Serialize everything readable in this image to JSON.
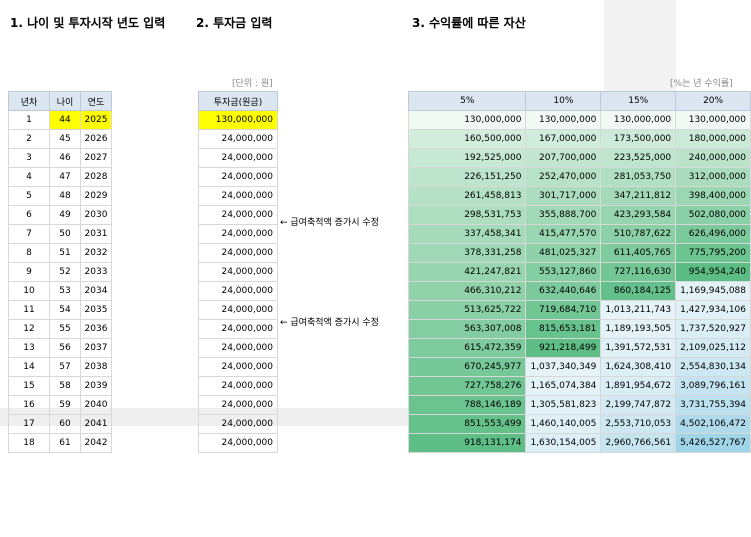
{
  "titles": {
    "age": "1. 나이 및 투자시작 년도 입력",
    "amount": "2. 투자금 입력",
    "returns": "3. 수익률에 따른 자산"
  },
  "units": {
    "amount": "[단위 : 원]",
    "returns": "[%는 년 수익률]"
  },
  "age_table": {
    "headers": [
      "년차",
      "나이",
      "연도"
    ],
    "rows": [
      [
        "1",
        "44",
        "2025"
      ],
      [
        "2",
        "45",
        "2026"
      ],
      [
        "3",
        "46",
        "2027"
      ],
      [
        "4",
        "47",
        "2028"
      ],
      [
        "5",
        "48",
        "2029"
      ],
      [
        "6",
        "49",
        "2030"
      ],
      [
        "7",
        "50",
        "2031"
      ],
      [
        "8",
        "51",
        "2032"
      ],
      [
        "9",
        "52",
        "2033"
      ],
      [
        "10",
        "53",
        "2034"
      ],
      [
        "11",
        "54",
        "2035"
      ],
      [
        "12",
        "55",
        "2036"
      ],
      [
        "13",
        "56",
        "2037"
      ],
      [
        "14",
        "57",
        "2038"
      ],
      [
        "15",
        "58",
        "2039"
      ],
      [
        "16",
        "59",
        "2040"
      ],
      [
        "17",
        "60",
        "2041"
      ],
      [
        "18",
        "61",
        "2042"
      ]
    ]
  },
  "amount_table": {
    "header": "투자금(원금)",
    "rows": [
      "130,000,000",
      "24,000,000",
      "24,000,000",
      "24,000,000",
      "24,000,000",
      "24,000,000",
      "24,000,000",
      "24,000,000",
      "24,000,000",
      "24,000,000",
      "24,000,000",
      "24,000,000",
      "24,000,000",
      "24,000,000",
      "24,000,000",
      "24,000,000",
      "24,000,000",
      "24,000,000"
    ]
  },
  "notes": [
    {
      "row": 6,
      "text": "← 급여축적액 증가시 수정"
    },
    {
      "row": 11,
      "text": "← 급여축적액 증가시 수정"
    }
  ],
  "returns_table": {
    "headers": [
      "5%",
      "10%",
      "15%",
      "20%"
    ],
    "rows": [
      [
        "130,000,000",
        "130,000,000",
        "130,000,000",
        "130,000,000"
      ],
      [
        "160,500,000",
        "167,000,000",
        "173,500,000",
        "180,000,000"
      ],
      [
        "192,525,000",
        "207,700,000",
        "223,525,000",
        "240,000,000"
      ],
      [
        "226,151,250",
        "252,470,000",
        "281,053,750",
        "312,000,000"
      ],
      [
        "261,458,813",
        "301,717,000",
        "347,211,812",
        "398,400,000"
      ],
      [
        "298,531,753",
        "355,888,700",
        "423,293,584",
        "502,080,000"
      ],
      [
        "337,458,341",
        "415,477,570",
        "510,787,622",
        "626,496,000"
      ],
      [
        "378,331,258",
        "481,025,327",
        "611,405,765",
        "775,795,200"
      ],
      [
        "421,247,821",
        "553,127,860",
        "727,116,630",
        "954,954,240"
      ],
      [
        "466,310,212",
        "632,440,646",
        "860,184,125",
        "1,169,945,088"
      ],
      [
        "513,625,722",
        "719,684,710",
        "1,013,211,743",
        "1,427,934,106"
      ],
      [
        "563,307,008",
        "815,653,181",
        "1,189,193,505",
        "1,737,520,927"
      ],
      [
        "615,472,359",
        "921,218,499",
        "1,391,572,531",
        "2,109,025,112"
      ],
      [
        "670,245,977",
        "1,037,340,349",
        "1,624,308,410",
        "2,554,830,134"
      ],
      [
        "727,758,276",
        "1,165,074,384",
        "1,891,954,672",
        "3,089,796,161"
      ],
      [
        "788,146,189",
        "1,305,581,823",
        "2,199,747,872",
        "3,731,755,394"
      ],
      [
        "851,553,499",
        "1,460,140,005",
        "2,553,710,053",
        "4,502,106,472"
      ],
      [
        "918,131,174",
        "1,630,154,005",
        "2,960,766,561",
        "5,426,527,767"
      ]
    ]
  },
  "colors": {
    "header_bg": "#dce6f1",
    "highlight_yellow": "#ffff00",
    "scale_low": "#f0f9f3",
    "scale_high": "#57bb80",
    "scale_max_blue": "#9fd3e8"
  }
}
